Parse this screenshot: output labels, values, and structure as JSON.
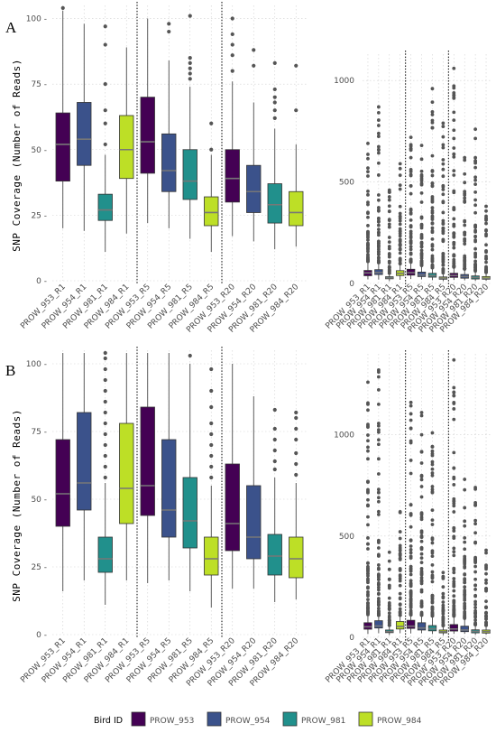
{
  "figure": {
    "ylabel": "SNP Coverage (Number of Reads)",
    "legend": {
      "title": "Bird ID",
      "items": [
        {
          "label": "PROW_953",
          "color": "#440154"
        },
        {
          "label": "PROW_954",
          "color": "#3b528b"
        },
        {
          "label": "PROW_981",
          "color": "#21908c"
        },
        {
          "label": "PROW_984",
          "color": "#bddf26"
        }
      ]
    }
  },
  "chart_data": [
    {
      "panel": "A",
      "subplot": "zoomed",
      "type": "box",
      "ylabel": "SNP Coverage (Number of Reads)",
      "ylim": [
        0,
        105
      ],
      "yticks": [
        0,
        25,
        50,
        75,
        100
      ],
      "categories": [
        "PROW_953_R1",
        "PROW_954_R1",
        "PROW_981_R1",
        "PROW_984_R1",
        "PROW_953_R5",
        "PROW_954_R5",
        "PROW_981_R5",
        "PROW_984_R5",
        "PROW_953_R20",
        "PROW_954_R20",
        "PROW_981_R20",
        "PROW_984_R20"
      ],
      "boxes": [
        {
          "q1": 38,
          "median": 52,
          "q3": 64,
          "lo": 20,
          "hi": 103,
          "out": [
            104
          ]
        },
        {
          "q1": 44,
          "median": 54,
          "q3": 68,
          "lo": 19,
          "hi": 98,
          "out": []
        },
        {
          "q1": 23,
          "median": 27,
          "q3": 33,
          "lo": 11,
          "hi": 48,
          "out": [
            52,
            60,
            65,
            75,
            90,
            97
          ]
        },
        {
          "q1": 39,
          "median": 50,
          "q3": 63,
          "lo": 18,
          "hi": 89,
          "out": []
        },
        {
          "q1": 41,
          "median": 53,
          "q3": 70,
          "lo": 22,
          "hi": 100,
          "out": []
        },
        {
          "q1": 34,
          "median": 42,
          "q3": 56,
          "lo": 20,
          "hi": 84,
          "out": [
            95,
            98
          ]
        },
        {
          "q1": 31,
          "median": 38,
          "q3": 50,
          "lo": 16,
          "hi": 74,
          "out": [
            77,
            79,
            81,
            83,
            85,
            101
          ]
        },
        {
          "q1": 21,
          "median": 26,
          "q3": 32,
          "lo": 11,
          "hi": 48,
          "out": [
            50,
            60
          ]
        },
        {
          "q1": 30,
          "median": 39,
          "q3": 50,
          "lo": 17,
          "hi": 76,
          "out": [
            80,
            86,
            90,
            94,
            100
          ]
        },
        {
          "q1": 26,
          "median": 34,
          "q3": 44,
          "lo": 15,
          "hi": 68,
          "out": [
            82,
            88
          ]
        },
        {
          "q1": 22,
          "median": 29,
          "q3": 37,
          "lo": 12,
          "hi": 58,
          "out": [
            62,
            65,
            68,
            70,
            73,
            83
          ]
        },
        {
          "q1": 21,
          "median": 26,
          "q3": 34,
          "lo": 13,
          "hi": 52,
          "out": [
            65,
            82
          ]
        }
      ],
      "dividers_after": [
        4,
        8
      ]
    },
    {
      "panel": "A",
      "subplot": "full",
      "type": "box",
      "ylim": [
        0,
        1130
      ],
      "yticks": [
        0,
        500,
        1000
      ],
      "categories": [
        "PROW_953_R1",
        "PROW_954_R1",
        "PROW_981_R1",
        "PROW_984_R1",
        "PROW_953_R5",
        "PROW_954_R5",
        "PROW_981_R5",
        "PROW_984_R5",
        "PROW_953_R20",
        "PROW_954_R20",
        "PROW_981_R20",
        "PROW_984_R20"
      ],
      "boxes": [
        {
          "q1": 38,
          "median": 52,
          "q3": 64,
          "lo": 20,
          "hi": 103,
          "outmax": 690
        },
        {
          "q1": 44,
          "median": 54,
          "q3": 68,
          "lo": 19,
          "hi": 98,
          "outmax": 870
        },
        {
          "q1": 23,
          "median": 27,
          "q3": 33,
          "lo": 11,
          "hi": 48,
          "outmax": 460
        },
        {
          "q1": 39,
          "median": 50,
          "q3": 63,
          "lo": 18,
          "hi": 89,
          "outmax": 590
        },
        {
          "q1": 41,
          "median": 53,
          "q3": 70,
          "lo": 22,
          "hi": 100,
          "outmax": 720
        },
        {
          "q1": 34,
          "median": 42,
          "q3": 56,
          "lo": 20,
          "hi": 84,
          "outmax": 680
        },
        {
          "q1": 31,
          "median": 38,
          "q3": 50,
          "lo": 16,
          "hi": 74,
          "outmax": 960
        },
        {
          "q1": 21,
          "median": 26,
          "q3": 32,
          "lo": 11,
          "hi": 48,
          "outmax": 790
        },
        {
          "q1": 30,
          "median": 39,
          "q3": 50,
          "lo": 17,
          "hi": 76,
          "outmax": 1060
        },
        {
          "q1": 26,
          "median": 34,
          "q3": 44,
          "lo": 15,
          "hi": 68,
          "outmax": 620
        },
        {
          "q1": 22,
          "median": 29,
          "q3": 37,
          "lo": 12,
          "hi": 58,
          "outmax": 760
        },
        {
          "q1": 21,
          "median": 26,
          "q3": 34,
          "lo": 13,
          "hi": 52,
          "outmax": 380
        }
      ],
      "dividers_after": [
        4,
        8
      ]
    },
    {
      "panel": "B",
      "subplot": "zoomed",
      "type": "box",
      "ylabel": "SNP Coverage (Number of Reads)",
      "ylim": [
        0,
        105
      ],
      "yticks": [
        0,
        25,
        50,
        75,
        100
      ],
      "categories": [
        "PROW_953_R1",
        "PROW_954_R1",
        "PROW_981_R1",
        "PROW_984_R1",
        "PROW_953_R5",
        "PROW_954_R5",
        "PROW_981_R5",
        "PROW_984_R5",
        "PROW_953_R20",
        "PROW_954_R20",
        "PROW_981_R20",
        "PROW_984_R20"
      ],
      "boxes": [
        {
          "q1": 40,
          "median": 52,
          "q3": 72,
          "lo": 16,
          "hi": 104,
          "out": []
        },
        {
          "q1": 46,
          "median": 56,
          "q3": 82,
          "lo": 20,
          "hi": 104,
          "out": []
        },
        {
          "q1": 23,
          "median": 28,
          "q3": 36,
          "lo": 11,
          "hi": 56,
          "out": [
            58,
            62,
            66,
            70,
            74,
            78,
            82,
            86,
            90,
            94,
            98,
            102,
            104
          ]
        },
        {
          "q1": 41,
          "median": 54,
          "q3": 78,
          "lo": 20,
          "hi": 104,
          "out": []
        },
        {
          "q1": 44,
          "median": 55,
          "q3": 84,
          "lo": 19,
          "hi": 104,
          "out": []
        },
        {
          "q1": 36,
          "median": 46,
          "q3": 72,
          "lo": 20,
          "hi": 104,
          "out": []
        },
        {
          "q1": 32,
          "median": 42,
          "q3": 58,
          "lo": 16,
          "hi": 100,
          "out": [
            103
          ]
        },
        {
          "q1": 22,
          "median": 28,
          "q3": 36,
          "lo": 10,
          "hi": 55,
          "out": [
            58,
            62,
            66,
            70,
            74,
            78,
            84,
            90,
            98
          ]
        },
        {
          "q1": 31,
          "median": 41,
          "q3": 63,
          "lo": 17,
          "hi": 100,
          "out": []
        },
        {
          "q1": 28,
          "median": 36,
          "q3": 55,
          "lo": 17,
          "hi": 88,
          "out": []
        },
        {
          "q1": 22,
          "median": 29,
          "q3": 37,
          "lo": 12,
          "hi": 58,
          "out": [
            61,
            64,
            68,
            72,
            76,
            83
          ]
        },
        {
          "q1": 21,
          "median": 28,
          "q3": 36,
          "lo": 13,
          "hi": 56,
          "out": [
            59,
            63,
            67,
            72,
            76,
            80,
            82
          ]
        }
      ],
      "dividers_after": [
        4,
        8
      ]
    },
    {
      "panel": "B",
      "subplot": "full",
      "type": "box",
      "ylim": [
        0,
        1400
      ],
      "yticks": [
        0,
        500,
        1000
      ],
      "categories": [
        "PROW_953_R1",
        "PROW_954_R1",
        "PROW_981_R1",
        "PROW_984_R1",
        "PROW_953_R5",
        "PROW_954_R5",
        "PROW_981_R5",
        "PROW_984_R5",
        "PROW_953_R20",
        "PROW_954_R20",
        "PROW_981_R20",
        "PROW_984_R20"
      ],
      "boxes": [
        {
          "q1": 40,
          "median": 52,
          "q3": 72,
          "lo": 16,
          "hi": 104,
          "outmax": 1260
        },
        {
          "q1": 46,
          "median": 56,
          "q3": 82,
          "lo": 20,
          "hi": 104,
          "outmax": 1320
        },
        {
          "q1": 23,
          "median": 28,
          "q3": 36,
          "lo": 11,
          "hi": 56,
          "outmax": 420
        },
        {
          "q1": 41,
          "median": 54,
          "q3": 78,
          "lo": 20,
          "hi": 104,
          "outmax": 620
        },
        {
          "q1": 44,
          "median": 55,
          "q3": 84,
          "lo": 19,
          "hi": 104,
          "outmax": 1160
        },
        {
          "q1": 36,
          "median": 46,
          "q3": 72,
          "lo": 20,
          "hi": 104,
          "outmax": 1110
        },
        {
          "q1": 32,
          "median": 42,
          "q3": 58,
          "lo": 16,
          "hi": 100,
          "outmax": 1010
        },
        {
          "q1": 22,
          "median": 28,
          "q3": 36,
          "lo": 10,
          "hi": 55,
          "outmax": 320
        },
        {
          "q1": 31,
          "median": 41,
          "q3": 63,
          "lo": 17,
          "hi": 100,
          "outmax": 1370
        },
        {
          "q1": 28,
          "median": 36,
          "q3": 55,
          "lo": 17,
          "hi": 88,
          "outmax": 780
        },
        {
          "q1": 22,
          "median": 29,
          "q3": 37,
          "lo": 12,
          "hi": 58,
          "outmax": 740
        },
        {
          "q1": 21,
          "median": 28,
          "q3": 36,
          "lo": 13,
          "hi": 56,
          "outmax": 430
        }
      ],
      "dividers_after": [
        4,
        8
      ]
    }
  ]
}
